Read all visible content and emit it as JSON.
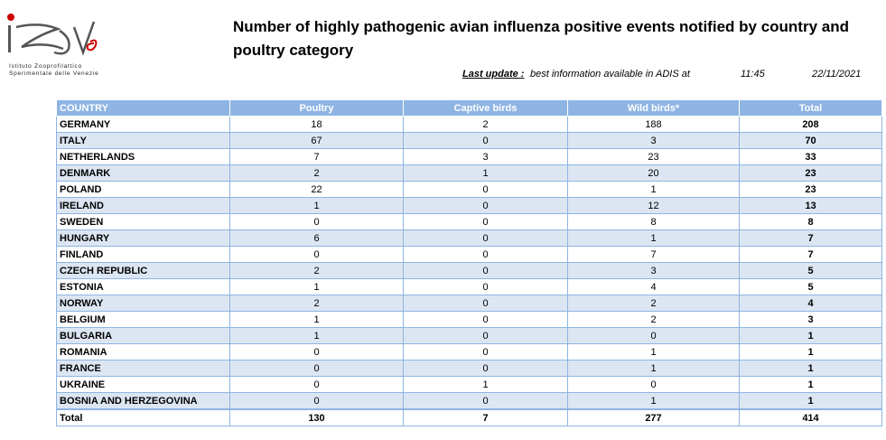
{
  "logo": {
    "text_line1": "Istituto Zooprofilattico",
    "text_line2": "Sperimentale delle Venezie",
    "dot_color": "#cc0000"
  },
  "title": "Number of highly pathogenic avian influenza positive events notified by country and poultry category",
  "last_update": {
    "label": "Last update :",
    "description": "best information available in ADIS at",
    "time": "11:45",
    "date": "22/11/2021"
  },
  "table": {
    "headers": [
      "COUNTRY",
      "Poultry",
      "Captive birds",
      "Wild birds*",
      "Total"
    ],
    "rows": [
      {
        "country": "GERMANY",
        "poultry": "18",
        "captive": "2",
        "wild": "188",
        "total": "208"
      },
      {
        "country": "ITALY",
        "poultry": "67",
        "captive": "0",
        "wild": "3",
        "total": "70"
      },
      {
        "country": "NETHERLANDS",
        "poultry": "7",
        "captive": "3",
        "wild": "23",
        "total": "33"
      },
      {
        "country": "DENMARK",
        "poultry": "2",
        "captive": "1",
        "wild": "20",
        "total": "23"
      },
      {
        "country": "POLAND",
        "poultry": "22",
        "captive": "0",
        "wild": "1",
        "total": "23"
      },
      {
        "country": "IRELAND",
        "poultry": "1",
        "captive": "0",
        "wild": "12",
        "total": "13"
      },
      {
        "country": "SWEDEN",
        "poultry": "0",
        "captive": "0",
        "wild": "8",
        "total": "8"
      },
      {
        "country": "HUNGARY",
        "poultry": "6",
        "captive": "0",
        "wild": "1",
        "total": "7"
      },
      {
        "country": "FINLAND",
        "poultry": "0",
        "captive": "0",
        "wild": "7",
        "total": "7"
      },
      {
        "country": "CZECH REPUBLIC",
        "poultry": "2",
        "captive": "0",
        "wild": "3",
        "total": "5"
      },
      {
        "country": "ESTONIA",
        "poultry": "1",
        "captive": "0",
        "wild": "4",
        "total": "5"
      },
      {
        "country": "NORWAY",
        "poultry": "2",
        "captive": "0",
        "wild": "2",
        "total": "4"
      },
      {
        "country": "BELGIUM",
        "poultry": "1",
        "captive": "0",
        "wild": "2",
        "total": "3"
      },
      {
        "country": "BULGARIA",
        "poultry": "1",
        "captive": "0",
        "wild": "0",
        "total": "1"
      },
      {
        "country": "ROMANIA",
        "poultry": "0",
        "captive": "0",
        "wild": "1",
        "total": "1"
      },
      {
        "country": "FRANCE",
        "poultry": "0",
        "captive": "0",
        "wild": "1",
        "total": "1"
      },
      {
        "country": "UKRAINE",
        "poultry": "0",
        "captive": "1",
        "wild": "0",
        "total": "1"
      },
      {
        "country": "BOSNIA AND HERZEGOVINA",
        "poultry": "0",
        "captive": "0",
        "wild": "1",
        "total": "1"
      }
    ],
    "totals": {
      "label": "Total",
      "poultry": "130",
      "captive": "7",
      "wild": "277",
      "total": "414"
    }
  },
  "colors": {
    "header_bg": "#8eb4e3",
    "alt_row_bg": "#dce6f2",
    "border": "#8eb4e3"
  }
}
